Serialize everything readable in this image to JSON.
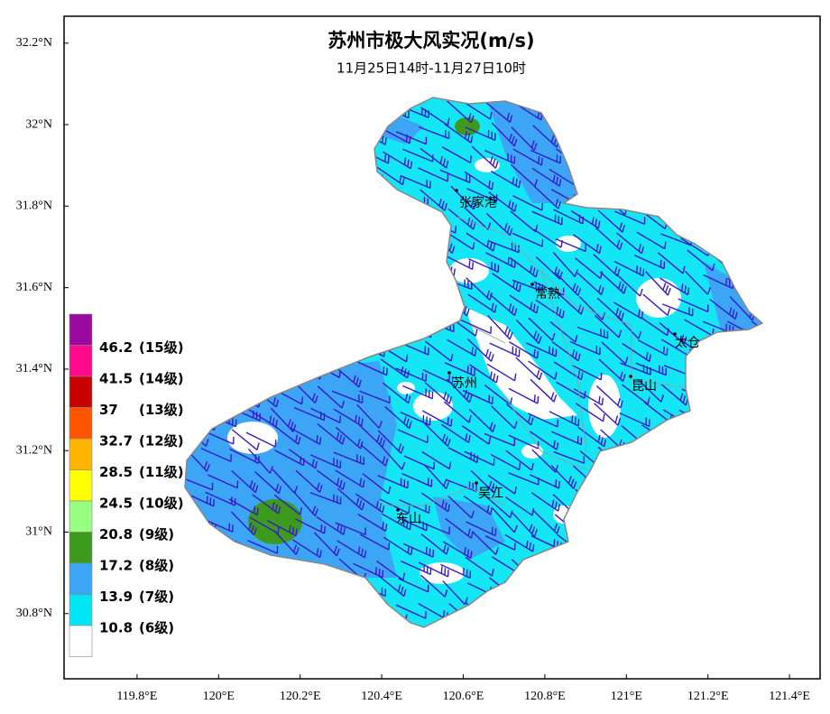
{
  "title": "苏州市极大风实况(m/s)",
  "subtitle": "11月25日14时-11月27日10时",
  "map": {
    "xlim": [
      119.621,
      121.475
    ],
    "ylim": [
      30.64,
      32.266
    ],
    "xticks": [
      {
        "value": 119.8,
        "label": "119.8°E"
      },
      {
        "value": 120,
        "label": "120°E"
      },
      {
        "value": 120.2,
        "label": "120.2°E"
      },
      {
        "value": 120.4,
        "label": "120.4°E"
      },
      {
        "value": 120.6,
        "label": "120.6°E"
      },
      {
        "value": 120.8,
        "label": "120.8°E"
      },
      {
        "value": 121,
        "label": "121°E"
      },
      {
        "value": 121.2,
        "label": "121.2°E"
      },
      {
        "value": 121.4,
        "label": "121.4°E"
      }
    ],
    "yticks": [
      {
        "value": 32.2,
        "label": "32.2°N"
      },
      {
        "value": 32,
        "label": "32°N"
      },
      {
        "value": 31.8,
        "label": "31.8°N"
      },
      {
        "value": 31.6,
        "label": "31.6°N"
      },
      {
        "value": 31.4,
        "label": "31.4°N"
      },
      {
        "value": 31.2,
        "label": "31.2°N"
      },
      {
        "value": 31,
        "label": "31°N"
      },
      {
        "value": 30.8,
        "label": "30.8°N"
      }
    ],
    "cities": [
      "张家港",
      "常熟",
      "太仓",
      "苏州",
      "昆山",
      "吴江",
      "东山"
    ]
  },
  "legend": {
    "colors": [
      "#9a0aa0",
      "#ff0a8c",
      "#c80000",
      "#ff5500",
      "#ffb400",
      "#ffff00",
      "#96ff82",
      "#3c9b1e",
      "#3ca5f5",
      "#00e6f5",
      "#ffffff"
    ],
    "levels": [
      {
        "value": 46.2,
        "grade": "(15级)"
      },
      {
        "value": 41.5,
        "grade": "(14级)"
      },
      {
        "value": 37,
        "grade": "(13级)"
      },
      {
        "value": 32.7,
        "grade": "(12级)"
      },
      {
        "value": 28.5,
        "grade": "(11级)"
      },
      {
        "value": 24.5,
        "grade": "(10级)"
      },
      {
        "value": 20.8,
        "grade": "(9级)"
      },
      {
        "value": 17.2,
        "grade": "(8级)"
      },
      {
        "value": 13.9,
        "grade": "(7级)"
      },
      {
        "value": 10.8,
        "grade": "(6级)"
      }
    ]
  }
}
